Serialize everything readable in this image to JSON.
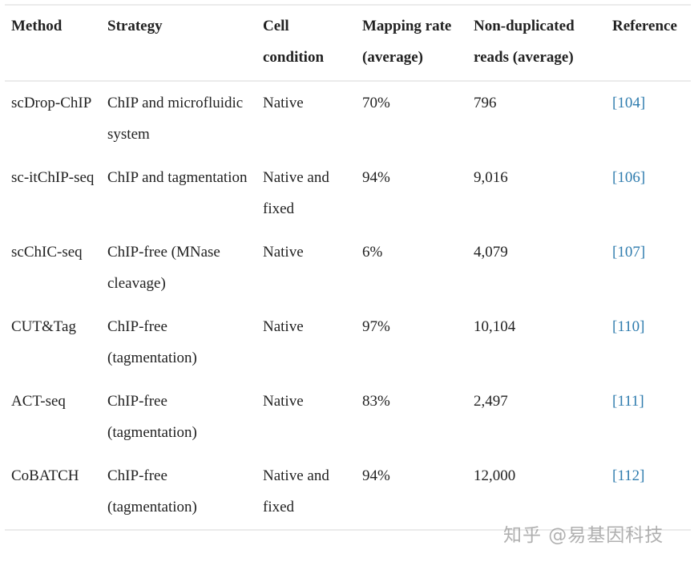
{
  "headers": [
    "Method",
    "Strategy",
    "Cell condition",
    "Mapping rate (average)",
    "Non-duplicated reads (average)",
    "Reference"
  ],
  "rows": [
    {
      "method": "scDrop-ChIP",
      "strategy": "ChIP and microfluidic system",
      "condition": "Native",
      "mapping": "70%",
      "reads": "796",
      "ref": "[104]"
    },
    {
      "method": "sc-itChIP-seq",
      "strategy": "ChIP and tagmentation",
      "condition": "Native and fixed",
      "mapping": "94%",
      "reads": "9,016",
      "ref": "[106]"
    },
    {
      "method": "scChIC-seq",
      "strategy": "ChIP-free (MNase cleavage)",
      "condition": "Native",
      "mapping": "6%",
      "reads": "4,079",
      "ref": "[107]"
    },
    {
      "method": "CUT&Tag",
      "strategy": "ChIP-free (tagmentation)",
      "condition": "Native",
      "mapping": "97%",
      "reads": "10,104",
      "ref": "[110]"
    },
    {
      "method": "ACT-seq",
      "strategy": "ChIP-free (tagmentation)",
      "condition": "Native",
      "mapping": "83%",
      "reads": "2,497",
      "ref": "[111]"
    },
    {
      "method": "CoBATCH",
      "strategy": "ChIP-free (tagmentation)",
      "condition": "Native and fixed",
      "mapping": "94%",
      "reads": "12,000",
      "ref": "[112]"
    }
  ],
  "watermark": "知乎 @易基因科技",
  "colors": {
    "link": "#2f7cae",
    "border": "#ebebeb"
  }
}
